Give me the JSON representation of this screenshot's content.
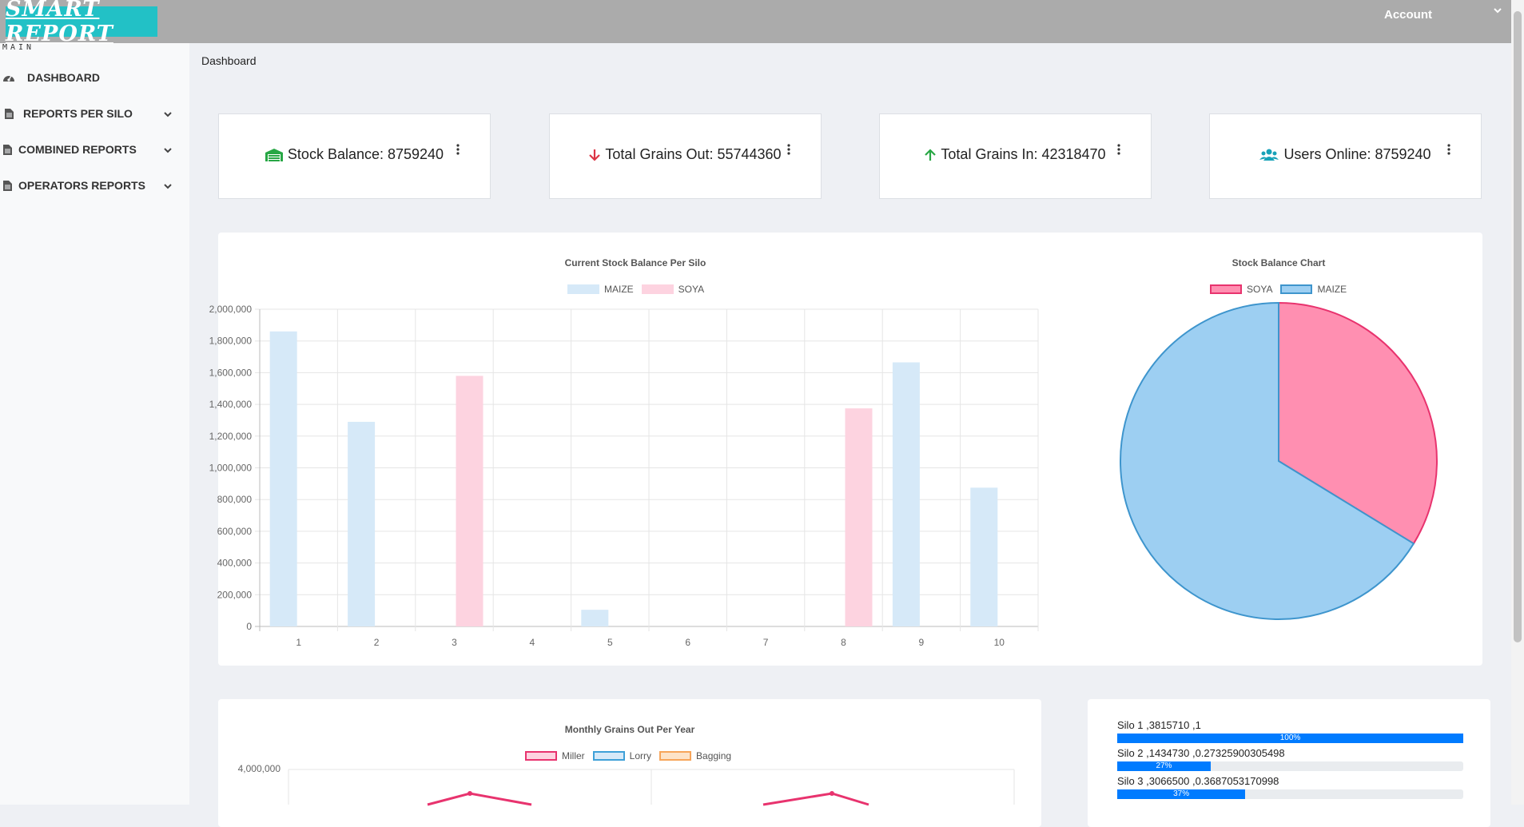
{
  "app": {
    "logo_text": "SMART REPORT",
    "account_label": "Account"
  },
  "sidebar": {
    "section_label": "MAIN",
    "items": [
      {
        "label": "DASHBOARD",
        "icon": "dashboard-gauge-icon",
        "has_submenu": false
      },
      {
        "label": "REPORTS PER SILO",
        "icon": "file-icon",
        "has_submenu": true
      },
      {
        "label": "COMBINED REPORTS",
        "icon": "file-icon",
        "has_submenu": true
      },
      {
        "label": "OPERATORS REPORTS",
        "icon": "file-icon",
        "has_submenu": true
      }
    ]
  },
  "breadcrumb": "Dashboard",
  "stats": [
    {
      "label": "Stock Balance: 8759240",
      "icon": "warehouse-icon",
      "icon_color": "#28a745"
    },
    {
      "label": "Total Grains Out: 55744360",
      "icon": "arrow-down-icon",
      "icon_color": "#dc3545"
    },
    {
      "label": "Total Grains In: 42318470",
      "icon": "arrow-up-icon",
      "icon_color": "#28a745"
    },
    {
      "label": "Users Online: 8759240",
      "icon": "users-icon",
      "icon_color": "#17a2b8"
    }
  ],
  "colors": {
    "maize_fill": "#d6e9f8",
    "soya_fill": "#fdd3e0",
    "pie_soya": "#ff8fb1",
    "pie_soya_border": "#e8336e",
    "pie_maize": "#9dcff2",
    "pie_maize_border": "#3e95cd",
    "miller": "#e8336e",
    "lorry": "#3ea0d8",
    "bagging": "#f7a55a",
    "progress": "#007bff"
  },
  "chart_data": [
    {
      "type": "bar",
      "title": "Current Stock Balance Per Silo",
      "categories": [
        "1",
        "2",
        "3",
        "4",
        "5",
        "6",
        "7",
        "8",
        "9",
        "10"
      ],
      "series": [
        {
          "name": "MAIZE",
          "values": [
            1860000,
            1290000,
            0,
            0,
            105000,
            0,
            0,
            0,
            1665000,
            875000
          ]
        },
        {
          "name": "SOYA",
          "values": [
            0,
            0,
            1580000,
            0,
            0,
            0,
            0,
            1375000,
            0,
            0
          ]
        }
      ],
      "ylim": [
        0,
        2000000
      ],
      "yticks": [
        "0",
        "200,000",
        "400,000",
        "600,000",
        "800,000",
        "1,000,000",
        "1,200,000",
        "1,400,000",
        "1,600,000",
        "1,800,000",
        "2,000,000"
      ],
      "legend": "top",
      "grid": true
    },
    {
      "type": "pie",
      "title": "Stock Balance Chart",
      "labels": [
        "SOYA",
        "MAIZE"
      ],
      "values": [
        2955000,
        5804240
      ],
      "legend": "top"
    },
    {
      "type": "line",
      "title": "Monthly Grains Out Per Year",
      "series": [
        {
          "name": "Miller"
        },
        {
          "name": "Lorry"
        },
        {
          "name": "Bagging"
        }
      ],
      "ylim_top_label": "4,000,000",
      "legend": "top"
    }
  ],
  "progress": [
    {
      "label": "Silo 1 ,3815710 ,1",
      "percent": 100,
      "text": "100%"
    },
    {
      "label": "Silo 2 ,1434730 ,0.27325900305498",
      "percent": 27,
      "text": "27%"
    },
    {
      "label": "Silo 3 ,3066500 ,0.3687053170998",
      "percent": 37,
      "text": "37%"
    }
  ]
}
